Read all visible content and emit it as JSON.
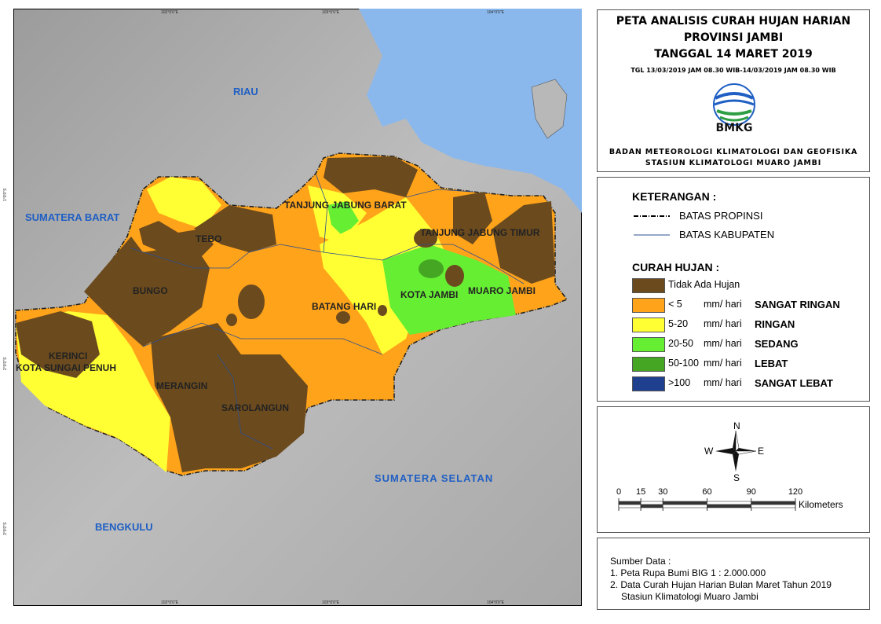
{
  "map": {
    "labels": [
      "RIAU",
      "SUMATERA BARAT",
      "TANJUNG JABUNG BARAT",
      "TANJUNG JABUNG TIMUR",
      "TEBO",
      "BUNGO",
      "BATANG HARI",
      "KOTA JAMBI",
      "MUARO JAMBI",
      "KERINCI",
      "KOTA SUNGAI PENUH",
      "MERANGIN",
      "SAROLANGUN",
      "SUMATERA SELATAN",
      "BENGKULU"
    ],
    "graticule": {
      "longitude": [
        "102°0'0\"E",
        "103°0'0\"E",
        "104°0'0\"E"
      ],
      "latitude": [
        "1°0'0\"S",
        "2°0'0\"S",
        "3°0'0\"S"
      ]
    }
  },
  "header": {
    "title": [
      "PETA ANALISIS CURAH HUJAN HARIAN",
      "PROVINSI JAMBI",
      "TANGGAL 14 MARET 2019"
    ],
    "period": "TGL 13/03/2019 JAM 08.30 WIB-14/03/2019 JAM 08.30 WIB",
    "logo": "BMKG",
    "agency": [
      "BADAN METEOROLOGI KLIMATOLOGI DAN GEOFISIKA",
      "STASIUN KLIMATOLOGI MUARO JAMBI"
    ]
  },
  "legend": {
    "title": "KETERANGAN :",
    "lines": [
      "BATAS PROPINSI",
      "BATAS KABUPATEN"
    ],
    "rain_title": "CURAH HUJAN :",
    "first_class": {
      "label": "Tidak Ada Hujan",
      "color": "#6b4a1e"
    },
    "classes": [
      {
        "range": "< 5",
        "unit": "mm/ hari",
        "category": "SANGAT RINGAN",
        "color": "#ffa31a"
      },
      {
        "range": "5-20",
        "unit": "mm/ hari",
        "category": "RINGAN",
        "color": "#ffff33"
      },
      {
        "range": "20-50",
        "unit": "mm/ hari",
        "category": "SEDANG",
        "color": "#66ee33"
      },
      {
        "range": "50-100",
        "unit": "mm/ hari",
        "category": "LEBAT",
        "color": "#44a622"
      },
      {
        "range": ">100",
        "unit": "mm/ hari",
        "category": "SANGAT LEBAT",
        "color": "#1f3f8f"
      }
    ]
  },
  "compass": {
    "north": "N",
    "south": "S",
    "east": "E",
    "west": "W"
  },
  "scale": {
    "ticks": [
      0,
      15,
      30,
      60,
      90,
      120
    ],
    "unit": "Kilometers"
  },
  "source": {
    "title": "Sumber Data :",
    "items": [
      "1. Peta Rupa Bumi BIG 1 : 2.000.000",
      "2. Data Curah Hujan Harian Bulan Maret Tahun 2019",
      "Stasiun Klimatologi Muaro Jambi"
    ]
  }
}
